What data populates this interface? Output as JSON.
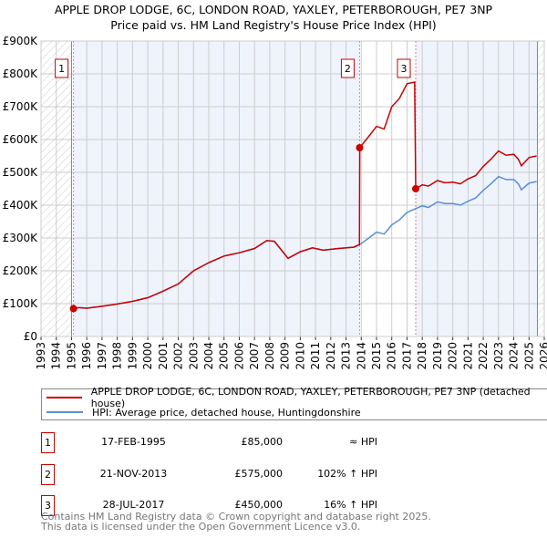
{
  "chart_data": {
    "type": "line",
    "title": "APPLE DROP LODGE, 6C, LONDON ROAD, YAXLEY, PETERBOROUGH, PE7 3NP",
    "subtitle": "Price paid vs. HM Land Registry's House Price Index (HPI)",
    "xlim": [
      1993,
      2026
    ],
    "ylim": [
      0,
      900000
    ],
    "x_ticks": [
      "1993",
      "1994",
      "1995",
      "1996",
      "1997",
      "1998",
      "1999",
      "2000",
      "2001",
      "2002",
      "2003",
      "2004",
      "2005",
      "2006",
      "2007",
      "2008",
      "2009",
      "2010",
      "2011",
      "2012",
      "2013",
      "2014",
      "2015",
      "2016",
      "2017",
      "2018",
      "2019",
      "2020",
      "2021",
      "2022",
      "2023",
      "2024",
      "2025",
      "2026"
    ],
    "y_ticks": [
      {
        "v": 0,
        "label": "£0"
      },
      {
        "v": 100000,
        "label": "£100K"
      },
      {
        "v": 200000,
        "label": "£200K"
      },
      {
        "v": 300000,
        "label": "£300K"
      },
      {
        "v": 400000,
        "label": "£400K"
      },
      {
        "v": 500000,
        "label": "£500K"
      },
      {
        "v": 600000,
        "label": "£600K"
      },
      {
        "v": 700000,
        "label": "£700K"
      },
      {
        "v": 800000,
        "label": "£800K"
      },
      {
        "v": 900000,
        "label": "£900K"
      }
    ],
    "grid": true,
    "series": [
      {
        "name": "APPLE DROP LODGE, 6C, LONDON ROAD, YAXLEY, PETERBOROUGH, PE7 3NP (detached house)",
        "color": "#cc0000",
        "x": [
          1995.13,
          1995.5,
          1996,
          1997,
          1998,
          1999,
          2000,
          2001,
          2002,
          2003,
          2004,
          2005,
          2006,
          2007,
          2007.8,
          2008.3,
          2009.2,
          2010,
          2010.8,
          2011.5,
          2012.5,
          2013.5,
          2013.88,
          2013.9,
          2014.5,
          2015,
          2015.5,
          2016,
          2016.5,
          2017,
          2017.5,
          2017.57,
          2018,
          2018.4,
          2019,
          2019.5,
          2020,
          2020.5,
          2021,
          2021.5,
          2022,
          2022.5,
          2023,
          2023.5,
          2024,
          2024.3,
          2024.5,
          2025,
          2025.5
        ],
        "y": [
          85000,
          88000,
          86000,
          92000,
          99000,
          107000,
          118000,
          138000,
          160000,
          200000,
          225000,
          245000,
          255000,
          268000,
          292000,
          290000,
          238000,
          258000,
          270000,
          263000,
          268000,
          272000,
          280000,
          575000,
          610000,
          640000,
          632000,
          700000,
          725000,
          770000,
          775000,
          450000,
          462000,
          458000,
          475000,
          468000,
          470000,
          465000,
          480000,
          490000,
          518000,
          540000,
          565000,
          552000,
          555000,
          540000,
          520000,
          545000,
          550000
        ]
      },
      {
        "name": "HPI: Average price, detached house, Huntingdonshire",
        "color": "#5b8fd6",
        "x": [
          1995.13,
          1995.5,
          1996,
          1997,
          1998,
          1999,
          2000,
          2001,
          2002,
          2003,
          2004,
          2005,
          2006,
          2007,
          2007.8,
          2008.3,
          2009.2,
          2010,
          2010.8,
          2011.5,
          2012.5,
          2013.5,
          2013.9,
          2014.5,
          2015,
          2015.5,
          2016,
          2016.5,
          2017,
          2017.6,
          2018,
          2018.4,
          2019,
          2019.5,
          2020,
          2020.5,
          2021,
          2021.5,
          2022,
          2022.5,
          2023,
          2023.5,
          2024,
          2024.3,
          2024.5,
          2025,
          2025.5
        ],
        "y": [
          85000,
          88000,
          86000,
          92000,
          99000,
          107000,
          118000,
          138000,
          160000,
          200000,
          225000,
          245000,
          255000,
          268000,
          292000,
          290000,
          238000,
          258000,
          270000,
          263000,
          268000,
          272000,
          280000,
          300000,
          318000,
          312000,
          340000,
          355000,
          378000,
          390000,
          398000,
          393000,
          410000,
          405000,
          405000,
          400000,
          412000,
          422000,
          445000,
          465000,
          487000,
          478000,
          478000,
          465000,
          447000,
          467000,
          472000
        ]
      }
    ],
    "sales": [
      {
        "label": "1",
        "x": 1995.13,
        "y": 85000,
        "date": "17-FEB-1995",
        "price": "£85,000",
        "hpi": "≈ HPI"
      },
      {
        "label": "2",
        "x": 2013.89,
        "y": 575000,
        "date": "21-NOV-2013",
        "price": "£575,000",
        "hpi": "102% ↑ HPI"
      },
      {
        "label": "3",
        "x": 2017.57,
        "y": 450000,
        "date": "28-JUL-2017",
        "price": "£450,000",
        "hpi": "16% ↑ HPI"
      }
    ],
    "legend_placement": "below"
  },
  "footer": {
    "line1": "Contains HM Land Registry data © Crown copyright and database right 2025.",
    "line2": "This data is licensed under the Open Government Licence v3.0."
  }
}
